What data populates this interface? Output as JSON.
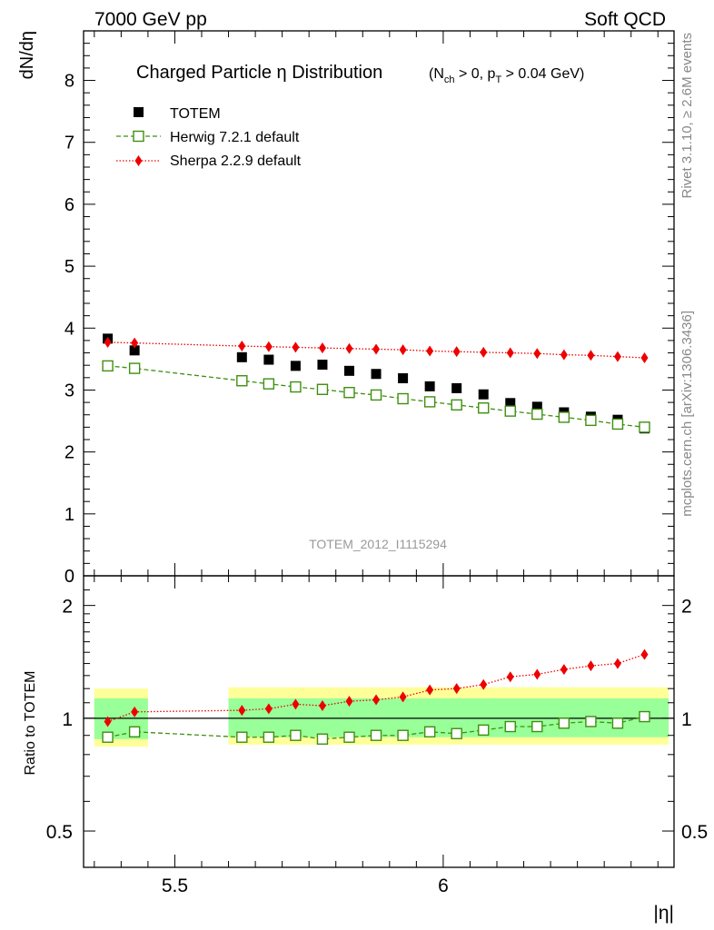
{
  "header": {
    "left": "7000 GeV pp",
    "right": "Soft QCD"
  },
  "side_labels": {
    "rivet": "Rivet 3.1.10, ≥ 2.6M events",
    "mcplots": "mcplots.cern.ch [arXiv:1306.3436]"
  },
  "chart_data": {
    "type": "scatter",
    "title": "Charged Particle η Distribution",
    "title_suffix": "(N_ch > 0, p_T > 0.04 GeV)",
    "analysis_id": "TOTEM_2012_I1115294",
    "xlabel": "|η|",
    "ylabel_main": "dN/dη",
    "ylabel_ratio": "Ratio to TOTEM",
    "xlim": [
      5.33,
      6.43
    ],
    "ylim_main": [
      0,
      8.8
    ],
    "ylim_ratio": [
      0.4,
      2.4
    ],
    "ratio_log_scale": true,
    "x_ticks": [
      "5.5",
      "6"
    ],
    "y_ticks_main": [
      "0",
      "1",
      "2",
      "3",
      "4",
      "5",
      "6",
      "7",
      "8"
    ],
    "y_ticks_ratio": [
      "0.5",
      "1",
      "2"
    ],
    "legend_position": "top-left",
    "x": [
      5.375,
      5.425,
      5.625,
      5.675,
      5.725,
      5.775,
      5.825,
      5.875,
      5.925,
      5.975,
      6.025,
      6.075,
      6.125,
      6.175,
      6.225,
      6.275,
      6.325,
      6.375
    ],
    "series": [
      {
        "name": "TOTEM",
        "color": "#000000",
        "marker": "square-filled",
        "values": [
          3.83,
          3.64,
          3.53,
          3.49,
          3.39,
          3.41,
          3.31,
          3.26,
          3.19,
          3.06,
          3.03,
          2.93,
          2.79,
          2.73,
          2.64,
          2.57,
          2.52,
          2.38
        ]
      },
      {
        "name": "Herwig 7.2.1 default",
        "color": "#3f8f0f",
        "marker": "square-open",
        "values": [
          3.39,
          3.35,
          3.15,
          3.1,
          3.05,
          3.01,
          2.96,
          2.92,
          2.86,
          2.81,
          2.76,
          2.71,
          2.66,
          2.61,
          2.56,
          2.51,
          2.45,
          2.4
        ]
      },
      {
        "name": "Sherpa 2.2.9 default",
        "color": "#ee0000",
        "marker": "diamond-filled",
        "values": [
          3.77,
          3.76,
          3.71,
          3.7,
          3.69,
          3.68,
          3.67,
          3.66,
          3.65,
          3.63,
          3.62,
          3.61,
          3.6,
          3.59,
          3.57,
          3.56,
          3.54,
          3.52
        ]
      }
    ],
    "ratio_series": [
      {
        "name": "Herwig 7.2.1 default",
        "color": "#3f8f0f",
        "values": [
          0.89,
          0.92,
          0.89,
          0.89,
          0.9,
          0.88,
          0.89,
          0.9,
          0.9,
          0.92,
          0.91,
          0.93,
          0.95,
          0.95,
          0.97,
          0.98,
          0.97,
          1.01
        ]
      },
      {
        "name": "Sherpa 2.2.9 default",
        "color": "#ee0000",
        "values": [
          0.98,
          1.04,
          1.05,
          1.06,
          1.09,
          1.08,
          1.11,
          1.12,
          1.14,
          1.19,
          1.2,
          1.23,
          1.29,
          1.31,
          1.35,
          1.38,
          1.4,
          1.48
        ]
      }
    ],
    "ratio_bands": [
      {
        "x_range": [
          5.35,
          5.45
        ],
        "inner": [
          0.88,
          1.13
        ],
        "outer": [
          0.84,
          1.2
        ]
      },
      {
        "x_range": [
          5.6,
          6.42
        ],
        "inner": [
          0.89,
          1.13
        ],
        "outer": [
          0.85,
          1.21
        ]
      }
    ],
    "band_colors": {
      "inner": "#99ff99",
      "outer": "#ffff99"
    }
  }
}
